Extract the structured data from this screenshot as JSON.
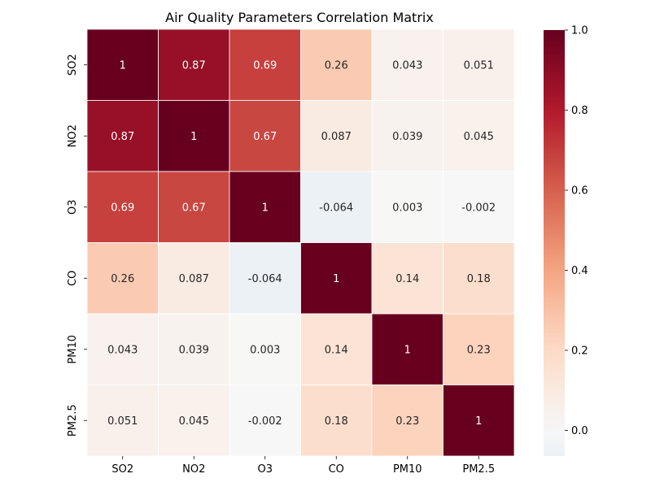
{
  "chart_data": {
    "type": "heatmap",
    "title": "Air Quality Parameters Correlation Matrix",
    "row_labels": [
      "SO2",
      "NO2",
      "O3",
      "CO",
      "PM10",
      "PM2.5"
    ],
    "col_labels": [
      "SO2",
      "NO2",
      "O3",
      "CO",
      "PM10",
      "PM2.5"
    ],
    "values": [
      [
        1,
        0.87,
        0.69,
        0.26,
        0.043,
        0.051
      ],
      [
        0.87,
        1,
        0.67,
        0.087,
        0.039,
        0.045
      ],
      [
        0.69,
        0.67,
        1,
        -0.064,
        0.003,
        -0.002
      ],
      [
        0.26,
        0.087,
        -0.064,
        1,
        0.14,
        0.18
      ],
      [
        0.043,
        0.039,
        0.003,
        0.14,
        1,
        0.23
      ],
      [
        0.051,
        0.045,
        -0.002,
        0.18,
        0.23,
        1
      ]
    ],
    "colorbar": {
      "min": -0.064,
      "max": 1.0,
      "ticks": [
        0.0,
        0.2,
        0.4,
        0.6,
        0.8,
        1.0
      ],
      "tick_labels": [
        "0.0",
        "0.2",
        "0.4",
        "0.6",
        "0.8",
        "1.0"
      ],
      "colormap": "RdBu_r"
    },
    "grid": false,
    "colors": {
      "cell_border": "#ffffff",
      "dark_text": "#262626",
      "light_text": "#ffffff"
    }
  }
}
